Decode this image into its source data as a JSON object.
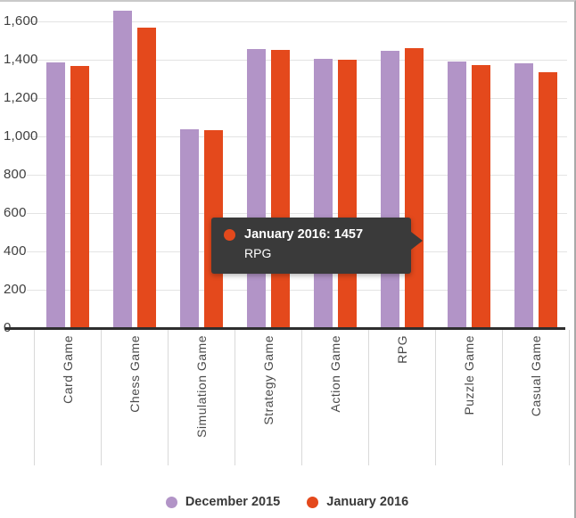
{
  "chart_data": {
    "type": "bar",
    "title": "",
    "categories": [
      "Card Game",
      "Chess Game",
      "Simulation Game",
      "Strategy Game",
      "Action Game",
      "RPG",
      "Puzzle Game",
      "Casual Game"
    ],
    "series": [
      {
        "name": "December 2015",
        "color": "#b294c7",
        "values": [
          1385,
          1655,
          1035,
          1455,
          1405,
          1445,
          1390,
          1380
        ]
      },
      {
        "name": "January 2016",
        "color": "#e4491c",
        "values": [
          1365,
          1565,
          1030,
          1450,
          1398,
          1457,
          1372,
          1335
        ]
      }
    ],
    "ylim": [
      0,
      1700
    ],
    "yticks": [
      0,
      200,
      400,
      600,
      800,
      1000,
      1200,
      1400,
      1600
    ],
    "ytick_labels": [
      "0",
      "200",
      "400",
      "600",
      "800",
      "1,000",
      "1,200",
      "1,400",
      "1,600"
    ],
    "grid": true,
    "legend_position": "bottom"
  },
  "tooltip": {
    "series": "January 2016",
    "value": 1457,
    "label": "January 2016: 1457",
    "category": "RPG"
  }
}
